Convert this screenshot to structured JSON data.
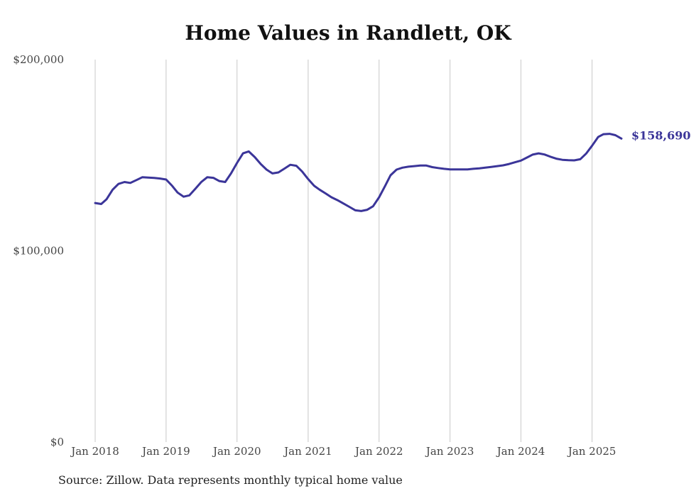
{
  "chart_data": {
    "type": "line",
    "title": "Home Values in Randlett, OK",
    "source": "Source: Zillow. Data represents monthly typical home value",
    "ylim": [
      0,
      200000
    ],
    "y_ticks": [
      {
        "value": 0,
        "label": "$0"
      },
      {
        "value": 100000,
        "label": "$100,000"
      },
      {
        "value": 200000,
        "label": "$200,000"
      }
    ],
    "x_ticks": [
      {
        "value": "2018-01",
        "label": "Jan 2018"
      },
      {
        "value": "2019-01",
        "label": "Jan 2019"
      },
      {
        "value": "2020-01",
        "label": "Jan 2020"
      },
      {
        "value": "2021-01",
        "label": "Jan 2021"
      },
      {
        "value": "2022-01",
        "label": "Jan 2022"
      },
      {
        "value": "2023-01",
        "label": "Jan 2023"
      },
      {
        "value": "2024-01",
        "label": "Jan 2024"
      },
      {
        "value": "2025-01",
        "label": "Jan 2025"
      }
    ],
    "grid": {
      "vertical": true,
      "horizontal": false
    },
    "line_color": "#3b3599",
    "end_label": "$158,690",
    "series": [
      {
        "x": [
          "2018-01",
          "2018-02",
          "2018-03",
          "2018-04",
          "2018-05",
          "2018-06",
          "2018-07",
          "2018-08",
          "2018-09",
          "2018-10",
          "2018-11",
          "2018-12",
          "2019-01",
          "2019-02",
          "2019-03",
          "2019-04",
          "2019-05",
          "2019-06",
          "2019-07",
          "2019-08",
          "2019-09",
          "2019-10",
          "2019-11",
          "2019-12",
          "2020-01",
          "2020-02",
          "2020-03",
          "2020-04",
          "2020-05",
          "2020-06",
          "2020-07",
          "2020-08",
          "2020-09",
          "2020-10",
          "2020-11",
          "2020-12",
          "2021-01",
          "2021-02",
          "2021-03",
          "2021-04",
          "2021-05",
          "2021-06",
          "2021-07",
          "2021-08",
          "2021-09",
          "2021-10",
          "2021-11",
          "2021-12",
          "2022-01",
          "2022-02",
          "2022-03",
          "2022-04",
          "2022-05",
          "2022-06",
          "2022-07",
          "2022-08",
          "2022-09",
          "2022-10",
          "2022-11",
          "2022-12",
          "2023-01",
          "2023-02",
          "2023-03",
          "2023-04",
          "2023-05",
          "2023-06",
          "2023-07",
          "2023-08",
          "2023-09",
          "2023-10",
          "2023-11",
          "2023-12",
          "2024-01",
          "2024-02",
          "2024-03",
          "2024-04",
          "2024-05",
          "2024-06",
          "2024-07",
          "2024-08",
          "2024-09",
          "2024-10",
          "2024-11",
          "2024-12",
          "2025-01",
          "2025-02",
          "2025-03",
          "2025-04",
          "2025-05",
          "2025-06"
        ],
        "values": [
          125000,
          124500,
          127000,
          132000,
          135000,
          136000,
          135500,
          137000,
          138500,
          138300,
          138100,
          137800,
          137300,
          134000,
          130500,
          128300,
          129000,
          132500,
          136000,
          138500,
          138200,
          136500,
          136000,
          140500,
          146000,
          151000,
          152000,
          149000,
          145500,
          142500,
          140500,
          141000,
          143000,
          145000,
          144500,
          141500,
          137500,
          134000,
          132000,
          130000,
          128000,
          126500,
          124800,
          123000,
          121200,
          120800,
          121500,
          123300,
          128000,
          134000,
          139500,
          142500,
          143500,
          144000,
          144300,
          144600,
          144600,
          143800,
          143300,
          142900,
          142600,
          142600,
          142600,
          142600,
          142900,
          143100,
          143500,
          143900,
          144300,
          144700,
          145400,
          146300,
          147200,
          148800,
          150300,
          151000,
          150400,
          149200,
          148200,
          147600,
          147400,
          147300,
          147900,
          150800,
          155000,
          159500,
          161000,
          161200,
          160500,
          158690
        ]
      }
    ]
  }
}
